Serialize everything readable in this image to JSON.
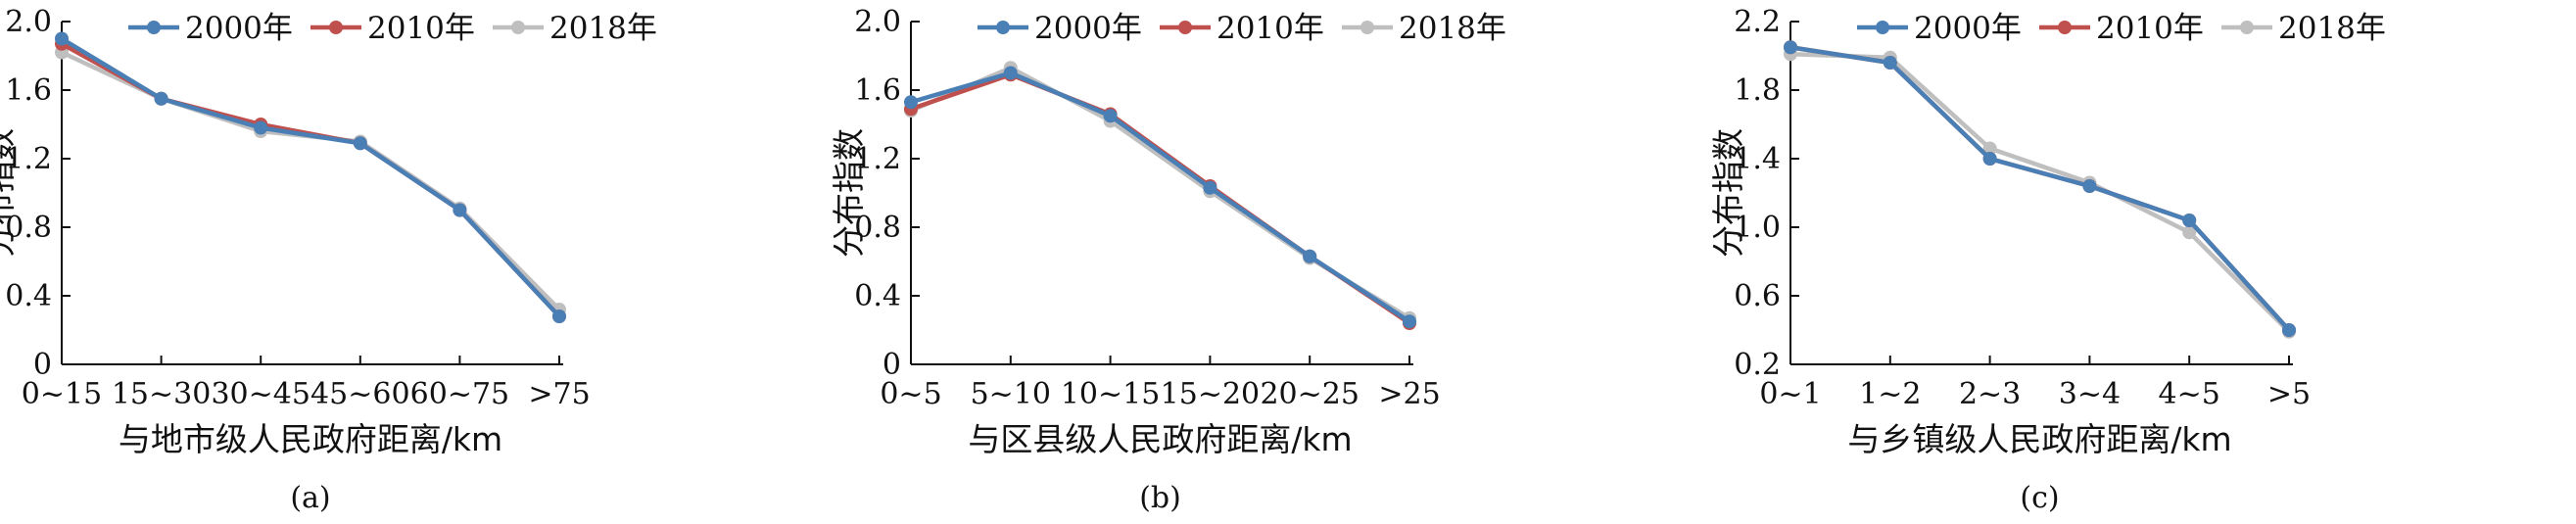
{
  "legend": [
    "2000年",
    "2010年",
    "2018年"
  ],
  "colors": {
    "2000年": "#4a7fb5",
    "2010年": "#c0504d",
    "2018年": "#bfbfbf"
  },
  "chart_data": [
    {
      "type": "line",
      "panel_label": "(a)",
      "xlabel": "与地市级人民政府距离/km",
      "ylabel": "分布指数",
      "categories": [
        "0~15",
        "15~30",
        "30~45",
        "45~60",
        "60~75",
        ">75"
      ],
      "yticks": [
        "0",
        "0.4",
        "0.8",
        "1.2",
        "1.6",
        "2.0"
      ],
      "ylim": [
        0,
        2.0
      ],
      "series": [
        {
          "name": "2000年",
          "values": [
            1.9,
            1.55,
            1.38,
            1.29,
            0.9,
            0.28
          ]
        },
        {
          "name": "2010年",
          "values": [
            1.87,
            1.55,
            1.4,
            1.29,
            0.9,
            0.28
          ]
        },
        {
          "name": "2018年",
          "values": [
            1.82,
            1.55,
            1.36,
            1.3,
            0.91,
            0.32
          ]
        }
      ]
    },
    {
      "type": "line",
      "panel_label": "(b)",
      "xlabel": "与区县级人民政府距离/km",
      "ylabel": "分布指数",
      "categories": [
        "0~5",
        "5~10",
        "10~15",
        "15~20",
        "20~25",
        ">25"
      ],
      "yticks": [
        "0",
        "0.4",
        "0.8",
        "1.2",
        "1.6",
        "2.0"
      ],
      "ylim": [
        0,
        2.0
      ],
      "series": [
        {
          "name": "2000年",
          "values": [
            1.53,
            1.7,
            1.45,
            1.03,
            0.63,
            0.25
          ]
        },
        {
          "name": "2010年",
          "values": [
            1.49,
            1.69,
            1.46,
            1.04,
            0.63,
            0.24
          ]
        },
        {
          "name": "2018年",
          "values": [
            1.48,
            1.73,
            1.42,
            1.01,
            0.62,
            0.27
          ]
        }
      ]
    },
    {
      "type": "line",
      "panel_label": "(c)",
      "xlabel": "与乡镇级人民政府距离/km",
      "ylabel": "分布指数",
      "categories": [
        "0~1",
        "1~2",
        "2~3",
        "3~4",
        "4~5",
        ">5"
      ],
      "yticks": [
        "0.2",
        "0.6",
        "1.0",
        "1.4",
        "1.8",
        "2.2"
      ],
      "ylim": [
        0.2,
        2.2
      ],
      "series": [
        {
          "name": "2000年",
          "values": [
            2.05,
            1.96,
            1.4,
            1.24,
            1.04,
            0.4
          ]
        },
        {
          "name": "2010年",
          "values": [
            2.05,
            1.96,
            1.4,
            1.24,
            1.04,
            0.4
          ]
        },
        {
          "name": "2018年",
          "values": [
            2.01,
            1.99,
            1.46,
            1.26,
            0.97,
            0.39
          ]
        }
      ]
    }
  ]
}
